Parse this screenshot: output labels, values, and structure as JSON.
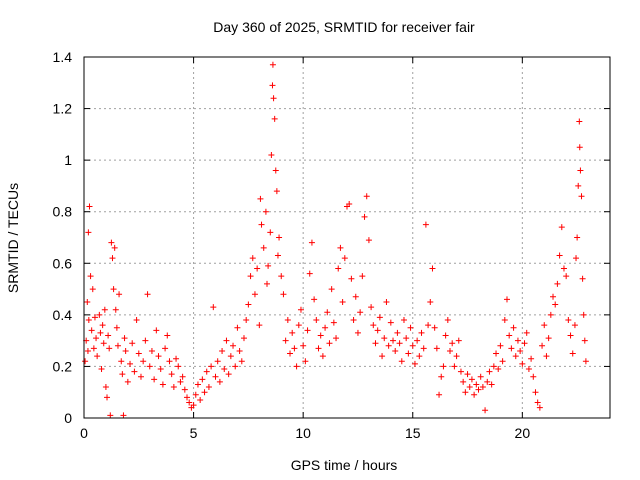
{
  "chart_data": {
    "type": "scatter",
    "title": "Day 360 of 2025, SRMTID for receiver fair",
    "xlabel": "GPS time / hours",
    "ylabel": "SRMTID / TECUs",
    "xlim": [
      0,
      24
    ],
    "ylim": [
      0,
      1.4
    ],
    "xticks": [
      0,
      5,
      10,
      15,
      20
    ],
    "xtick_labels": [
      "0",
      "5",
      "10",
      "15",
      "20"
    ],
    "yticks": [
      0,
      0.2,
      0.4,
      0.6,
      0.8,
      1,
      1.2,
      1.4
    ],
    "ytick_labels": [
      "0",
      "0.2",
      "0.4",
      "0.6",
      "0.8",
      "1",
      "1.2",
      "1.4"
    ],
    "grid": true,
    "marker": "+",
    "color": "#ff0000",
    "series": [
      {
        "name": "SRMTID",
        "points": [
          [
            0.05,
            0.22
          ],
          [
            0.1,
            0.3
          ],
          [
            0.15,
            0.45
          ],
          [
            0.18,
            0.26
          ],
          [
            0.2,
            0.72
          ],
          [
            0.22,
            0.38
          ],
          [
            0.25,
            0.82
          ],
          [
            0.3,
            0.55
          ],
          [
            0.35,
            0.34
          ],
          [
            0.4,
            0.5
          ],
          [
            0.45,
            0.27
          ],
          [
            0.5,
            0.39
          ],
          [
            0.55,
            0.31
          ],
          [
            0.6,
            0.24
          ],
          [
            0.7,
            0.4
          ],
          [
            0.75,
            0.33
          ],
          [
            0.8,
            0.19
          ],
          [
            0.85,
            0.36
          ],
          [
            0.9,
            0.29
          ],
          [
            0.95,
            0.42
          ],
          [
            1.0,
            0.12
          ],
          [
            1.05,
            0.08
          ],
          [
            1.1,
            0.32
          ],
          [
            1.15,
            0.27
          ],
          [
            1.2,
            0.01
          ],
          [
            1.25,
            0.68
          ],
          [
            1.3,
            0.62
          ],
          [
            1.35,
            0.5
          ],
          [
            1.4,
            0.66
          ],
          [
            1.45,
            0.42
          ],
          [
            1.5,
            0.35
          ],
          [
            1.55,
            0.28
          ],
          [
            1.6,
            0.48
          ],
          [
            1.7,
            0.22
          ],
          [
            1.75,
            0.17
          ],
          [
            1.8,
            0.01
          ],
          [
            1.85,
            0.31
          ],
          [
            1.9,
            0.26
          ],
          [
            2.0,
            0.14
          ],
          [
            2.1,
            0.21
          ],
          [
            2.2,
            0.29
          ],
          [
            2.3,
            0.18
          ],
          [
            2.4,
            0.38
          ],
          [
            2.5,
            0.25
          ],
          [
            2.6,
            0.16
          ],
          [
            2.7,
            0.22
          ],
          [
            2.8,
            0.3
          ],
          [
            2.9,
            0.48
          ],
          [
            3.0,
            0.2
          ],
          [
            3.1,
            0.26
          ],
          [
            3.2,
            0.15
          ],
          [
            3.3,
            0.34
          ],
          [
            3.4,
            0.24
          ],
          [
            3.5,
            0.19
          ],
          [
            3.6,
            0.13
          ],
          [
            3.7,
            0.27
          ],
          [
            3.8,
            0.32
          ],
          [
            3.9,
            0.22
          ],
          [
            4.0,
            0.17
          ],
          [
            4.1,
            0.12
          ],
          [
            4.2,
            0.23
          ],
          [
            4.3,
            0.2
          ],
          [
            4.4,
            0.14
          ],
          [
            4.5,
            0.16
          ],
          [
            4.6,
            0.11
          ],
          [
            4.7,
            0.08
          ],
          [
            4.8,
            0.06
          ],
          [
            4.9,
            0.04
          ],
          [
            5.0,
            0.05
          ],
          [
            5.1,
            0.09
          ],
          [
            5.2,
            0.13
          ],
          [
            5.3,
            0.07
          ],
          [
            5.4,
            0.15
          ],
          [
            5.5,
            0.1
          ],
          [
            5.6,
            0.18
          ],
          [
            5.7,
            0.12
          ],
          [
            5.8,
            0.2
          ],
          [
            5.9,
            0.43
          ],
          [
            6.0,
            0.16
          ],
          [
            6.1,
            0.22
          ],
          [
            6.2,
            0.14
          ],
          [
            6.3,
            0.26
          ],
          [
            6.4,
            0.19
          ],
          [
            6.5,
            0.3
          ],
          [
            6.6,
            0.17
          ],
          [
            6.7,
            0.24
          ],
          [
            6.8,
            0.28
          ],
          [
            6.9,
            0.2
          ],
          [
            7.0,
            0.35
          ],
          [
            7.1,
            0.26
          ],
          [
            7.2,
            0.22
          ],
          [
            7.3,
            0.31
          ],
          [
            7.4,
            0.38
          ],
          [
            7.5,
            0.44
          ],
          [
            7.6,
            0.55
          ],
          [
            7.7,
            0.62
          ],
          [
            7.8,
            0.48
          ],
          [
            7.9,
            0.58
          ],
          [
            8.0,
            0.36
          ],
          [
            8.05,
            0.85
          ],
          [
            8.1,
            0.75
          ],
          [
            8.2,
            0.66
          ],
          [
            8.3,
            0.8
          ],
          [
            8.35,
            0.52
          ],
          [
            8.4,
            0.59
          ],
          [
            8.5,
            0.72
          ],
          [
            8.55,
            1.02
          ],
          [
            8.6,
            1.29
          ],
          [
            8.62,
            1.37
          ],
          [
            8.65,
            1.24
          ],
          [
            8.7,
            1.16
          ],
          [
            8.75,
            0.96
          ],
          [
            8.8,
            0.88
          ],
          [
            8.85,
            0.63
          ],
          [
            8.9,
            0.7
          ],
          [
            9.0,
            0.55
          ],
          [
            9.1,
            0.48
          ],
          [
            9.2,
            0.3
          ],
          [
            9.3,
            0.38
          ],
          [
            9.4,
            0.25
          ],
          [
            9.5,
            0.33
          ],
          [
            9.6,
            0.27
          ],
          [
            9.7,
            0.2
          ],
          [
            9.8,
            0.36
          ],
          [
            9.9,
            0.42
          ],
          [
            10.0,
            0.28
          ],
          [
            10.1,
            0.22
          ],
          [
            10.2,
            0.34
          ],
          [
            10.3,
            0.56
          ],
          [
            10.4,
            0.68
          ],
          [
            10.5,
            0.46
          ],
          [
            10.6,
            0.38
          ],
          [
            10.7,
            0.27
          ],
          [
            10.8,
            0.32
          ],
          [
            10.9,
            0.24
          ],
          [
            11.0,
            0.35
          ],
          [
            11.1,
            0.41
          ],
          [
            11.2,
            0.29
          ],
          [
            11.3,
            0.5
          ],
          [
            11.4,
            0.37
          ],
          [
            11.5,
            0.31
          ],
          [
            11.6,
            0.58
          ],
          [
            11.7,
            0.66
          ],
          [
            11.8,
            0.45
          ],
          [
            11.9,
            0.62
          ],
          [
            12.0,
            0.82
          ],
          [
            12.1,
            0.83
          ],
          [
            12.2,
            0.54
          ],
          [
            12.3,
            0.38
          ],
          [
            12.4,
            0.47
          ],
          [
            12.5,
            0.33
          ],
          [
            12.6,
            0.41
          ],
          [
            12.7,
            0.55
          ],
          [
            12.8,
            0.78
          ],
          [
            12.9,
            0.86
          ],
          [
            13.0,
            0.69
          ],
          [
            13.1,
            0.43
          ],
          [
            13.2,
            0.36
          ],
          [
            13.3,
            0.29
          ],
          [
            13.4,
            0.34
          ],
          [
            13.5,
            0.39
          ],
          [
            13.6,
            0.24
          ],
          [
            13.7,
            0.31
          ],
          [
            13.8,
            0.45
          ],
          [
            13.9,
            0.28
          ],
          [
            14.0,
            0.37
          ],
          [
            14.1,
            0.3
          ],
          [
            14.2,
            0.26
          ],
          [
            14.3,
            0.33
          ],
          [
            14.4,
            0.29
          ],
          [
            14.5,
            0.22
          ],
          [
            14.6,
            0.38
          ],
          [
            14.7,
            0.31
          ],
          [
            14.8,
            0.25
          ],
          [
            14.9,
            0.35
          ],
          [
            15.0,
            0.28
          ],
          [
            15.1,
            0.21
          ],
          [
            15.2,
            0.3
          ],
          [
            15.3,
            0.24
          ],
          [
            15.4,
            0.33
          ],
          [
            15.5,
            0.27
          ],
          [
            15.6,
            0.75
          ],
          [
            15.7,
            0.36
          ],
          [
            15.8,
            0.45
          ],
          [
            15.9,
            0.58
          ],
          [
            16.0,
            0.35
          ],
          [
            16.1,
            0.27
          ],
          [
            16.2,
            0.09
          ],
          [
            16.3,
            0.16
          ],
          [
            16.4,
            0.2
          ],
          [
            16.5,
            0.32
          ],
          [
            16.6,
            0.38
          ],
          [
            16.7,
            0.26
          ],
          [
            16.8,
            0.29
          ],
          [
            16.9,
            0.2
          ],
          [
            17.0,
            0.24
          ],
          [
            17.1,
            0.3
          ],
          [
            17.2,
            0.18
          ],
          [
            17.3,
            0.14
          ],
          [
            17.4,
            0.1
          ],
          [
            17.5,
            0.17
          ],
          [
            17.6,
            0.12
          ],
          [
            17.7,
            0.15
          ],
          [
            17.8,
            0.09
          ],
          [
            17.9,
            0.13
          ],
          [
            18.0,
            0.11
          ],
          [
            18.1,
            0.16
          ],
          [
            18.2,
            0.12
          ],
          [
            18.3,
            0.03
          ],
          [
            18.4,
            0.14
          ],
          [
            18.5,
            0.18
          ],
          [
            18.6,
            0.13
          ],
          [
            18.7,
            0.2
          ],
          [
            18.8,
            0.25
          ],
          [
            18.9,
            0.19
          ],
          [
            19.0,
            0.28
          ],
          [
            19.1,
            0.22
          ],
          [
            19.2,
            0.38
          ],
          [
            19.3,
            0.46
          ],
          [
            19.4,
            0.32
          ],
          [
            19.5,
            0.27
          ],
          [
            19.6,
            0.35
          ],
          [
            19.7,
            0.24
          ],
          [
            19.8,
            0.3
          ],
          [
            19.9,
            0.26
          ],
          [
            20.0,
            0.21
          ],
          [
            20.1,
            0.29
          ],
          [
            20.2,
            0.33
          ],
          [
            20.3,
            0.19
          ],
          [
            20.4,
            0.23
          ],
          [
            20.5,
            0.16
          ],
          [
            20.6,
            0.1
          ],
          [
            20.7,
            0.06
          ],
          [
            20.8,
            0.04
          ],
          [
            20.9,
            0.28
          ],
          [
            21.0,
            0.36
          ],
          [
            21.1,
            0.24
          ],
          [
            21.2,
            0.31
          ],
          [
            21.3,
            0.4
          ],
          [
            21.4,
            0.47
          ],
          [
            21.5,
            0.44
          ],
          [
            21.6,
            0.52
          ],
          [
            21.7,
            0.63
          ],
          [
            21.8,
            0.74
          ],
          [
            21.9,
            0.58
          ],
          [
            22.0,
            0.55
          ],
          [
            22.1,
            0.38
          ],
          [
            22.2,
            0.32
          ],
          [
            22.3,
            0.25
          ],
          [
            22.4,
            0.36
          ],
          [
            22.45,
            0.62
          ],
          [
            22.5,
            0.7
          ],
          [
            22.55,
            0.9
          ],
          [
            22.6,
            1.15
          ],
          [
            22.62,
            1.05
          ],
          [
            22.65,
            0.96
          ],
          [
            22.7,
            0.86
          ],
          [
            22.75,
            0.54
          ],
          [
            22.8,
            0.4
          ],
          [
            22.85,
            0.3
          ],
          [
            22.9,
            0.22
          ]
        ]
      }
    ]
  }
}
